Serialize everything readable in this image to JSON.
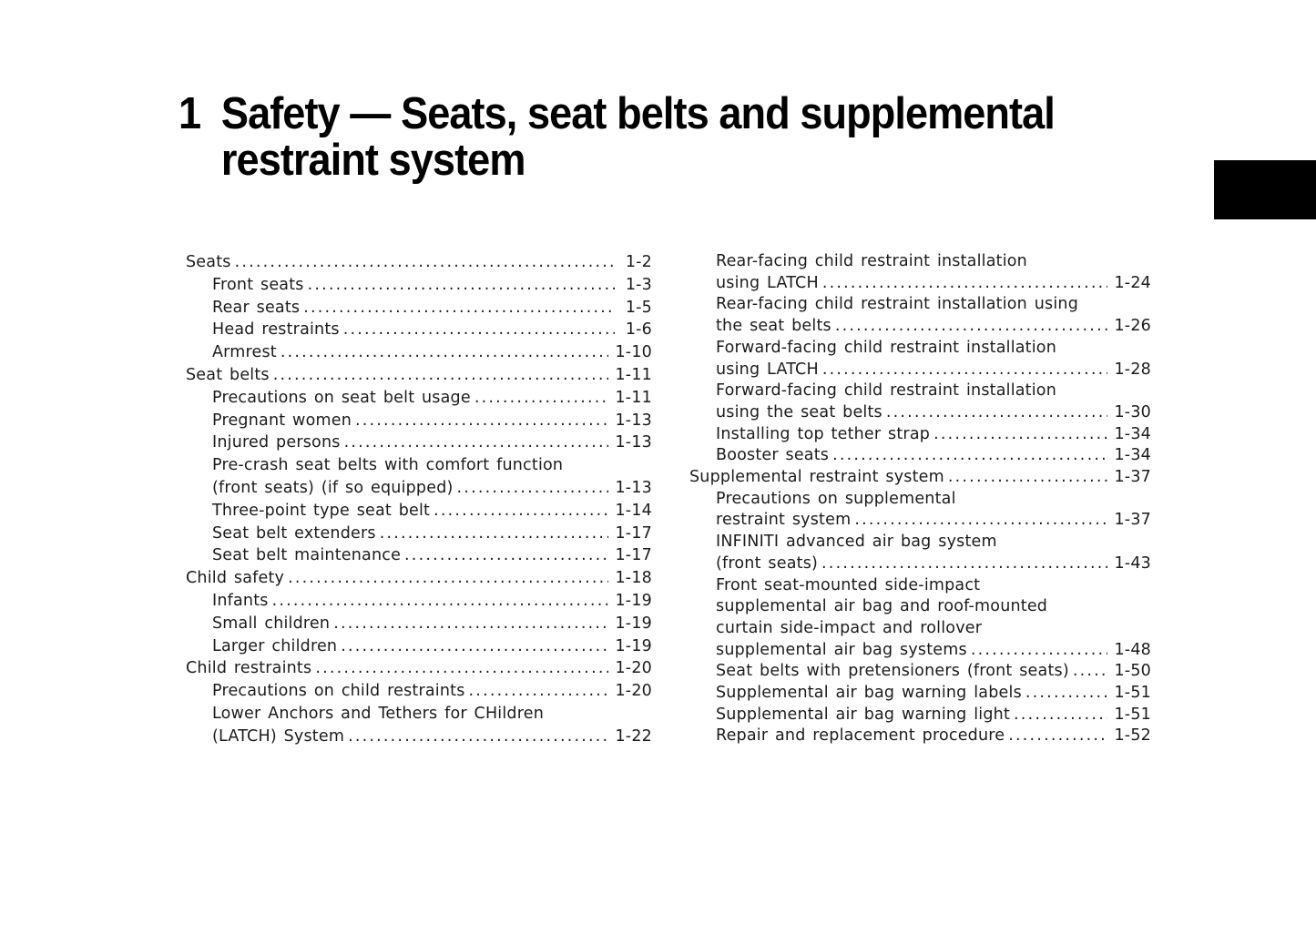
{
  "title": {
    "number": "1",
    "line1": "Safety — Seats, seat belts and supplemental",
    "line2": "restraint system"
  },
  "tab_color": "#000000",
  "toc": {
    "left": [
      {
        "level": 0,
        "lines": [
          "Seats"
        ],
        "page": "1-2"
      },
      {
        "level": 1,
        "lines": [
          "Front seats"
        ],
        "page": "1-3"
      },
      {
        "level": 1,
        "lines": [
          "Rear seats"
        ],
        "page": "1-5"
      },
      {
        "level": 1,
        "lines": [
          "Head restraints"
        ],
        "page": "1-6"
      },
      {
        "level": 1,
        "lines": [
          "Armrest "
        ],
        "page": "1-10"
      },
      {
        "level": 0,
        "lines": [
          "Seat belts"
        ],
        "page": "1-11"
      },
      {
        "level": 1,
        "lines": [
          "Precautions on seat belt usage"
        ],
        "page": "1-11"
      },
      {
        "level": 1,
        "lines": [
          "Pregnant women"
        ],
        "page": "1-13"
      },
      {
        "level": 1,
        "lines": [
          "Injured persons"
        ],
        "page": "1-13"
      },
      {
        "level": 1,
        "lines": [
          "Pre-crash seat belts with comfort function",
          "(front seats) (if so equipped)"
        ],
        "page": "1-13"
      },
      {
        "level": 1,
        "lines": [
          "Three-point type seat belt"
        ],
        "page": "1-14"
      },
      {
        "level": 1,
        "lines": [
          "Seat belt extenders"
        ],
        "page": "1-17"
      },
      {
        "level": 1,
        "lines": [
          "Seat belt maintenance"
        ],
        "page": "1-17"
      },
      {
        "level": 0,
        "lines": [
          "Child safety"
        ],
        "page": "1-18"
      },
      {
        "level": 1,
        "lines": [
          "Infants"
        ],
        "page": "1-19"
      },
      {
        "level": 1,
        "lines": [
          "Small children"
        ],
        "page": "1-19"
      },
      {
        "level": 1,
        "lines": [
          "Larger children"
        ],
        "page": "1-19"
      },
      {
        "level": 0,
        "lines": [
          "Child restraints"
        ],
        "page": "1-20"
      },
      {
        "level": 1,
        "lines": [
          "Precautions on child restraints"
        ],
        "page": "1-20"
      },
      {
        "level": 1,
        "lines": [
          "Lower Anchors and Tethers for CHildren",
          "(LATCH) System"
        ],
        "page": "1-22"
      }
    ],
    "right": [
      {
        "level": 1,
        "lines": [
          "Rear-facing child restraint installation",
          "using LATCH"
        ],
        "page": "1-24"
      },
      {
        "level": 1,
        "lines": [
          "Rear-facing child restraint installation using",
          "the seat belts"
        ],
        "page": "1-26"
      },
      {
        "level": 1,
        "lines": [
          "Forward-facing child restraint installation",
          "using LATCH"
        ],
        "page": "1-28"
      },
      {
        "level": 1,
        "lines": [
          "Forward-facing child restraint installation",
          "using the seat belts"
        ],
        "page": "1-30"
      },
      {
        "level": 1,
        "lines": [
          "Installing top tether strap"
        ],
        "page": "1-34"
      },
      {
        "level": 1,
        "lines": [
          "Booster seats"
        ],
        "page": "1-34"
      },
      {
        "level": 0,
        "lines": [
          "Supplemental restraint system"
        ],
        "page": "1-37"
      },
      {
        "level": 1,
        "lines": [
          "Precautions on supplemental",
          "restraint system"
        ],
        "page": "1-37"
      },
      {
        "level": 1,
        "lines": [
          "INFINITI advanced air bag system",
          "(front seats)"
        ],
        "page": "1-43"
      },
      {
        "level": 1,
        "lines": [
          "Front seat-mounted side-impact",
          "supplemental air bag and roof-mounted",
          "curtain side-impact and rollover",
          "supplemental air bag systems"
        ],
        "page": "1-48"
      },
      {
        "level": 1,
        "lines": [
          "Seat belts with pretensioners (front seats)"
        ],
        "page": "1-50"
      },
      {
        "level": 1,
        "lines": [
          "Supplemental air bag warning labels"
        ],
        "page": "1-51"
      },
      {
        "level": 1,
        "lines": [
          "Supplemental air bag warning light"
        ],
        "page": "1-51"
      },
      {
        "level": 1,
        "lines": [
          "Repair and replacement procedure"
        ],
        "page": "1-52"
      }
    ]
  }
}
